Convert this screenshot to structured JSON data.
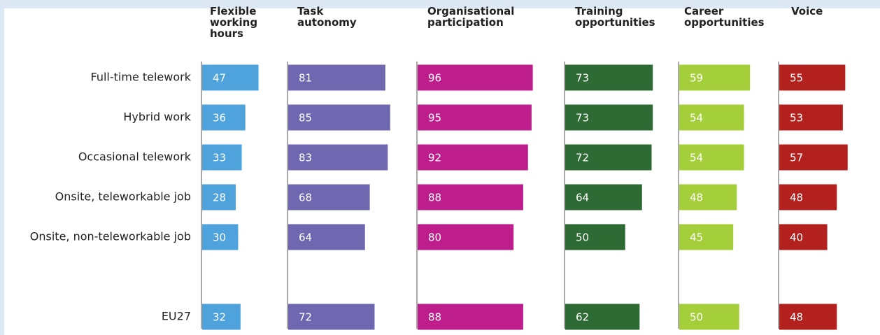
{
  "chart_data": {
    "type": "bar",
    "categories": [
      "Full-time telework",
      "Hybrid work",
      "Occasional telework",
      "Onsite, teleworkable job",
      "Onsite, non-teleworkable job",
      null,
      "EU27"
    ],
    "series": [
      {
        "name": "Flexible working hours",
        "color": "#4fa3dc",
        "values": [
          47,
          36,
          33,
          28,
          30,
          null,
          32
        ]
      },
      {
        "name": "Task autonomy",
        "color": "#6f68b0",
        "values": [
          81,
          85,
          83,
          68,
          64,
          null,
          72
        ]
      },
      {
        "name": "Organisational participation",
        "color": "#be1e8c",
        "values": [
          96,
          95,
          92,
          88,
          80,
          null,
          88
        ]
      },
      {
        "name": "Training opportunities",
        "color": "#2e6a34",
        "values": [
          73,
          73,
          72,
          64,
          50,
          null,
          62
        ]
      },
      {
        "name": "Career opportunities",
        "color": "#a4cf3a",
        "values": [
          59,
          54,
          54,
          48,
          45,
          null,
          50
        ]
      },
      {
        "name": "Voice",
        "color": "#b3211f",
        "values": [
          55,
          53,
          57,
          48,
          40,
          null,
          48
        ]
      }
    ]
  }
}
